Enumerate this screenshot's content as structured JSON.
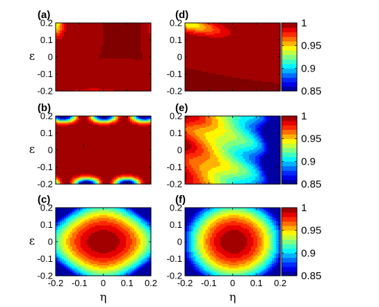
{
  "chart_data": {
    "type": "heatmap",
    "colormap": "jet",
    "levels": [
      0.85,
      0.86,
      0.87,
      0.88,
      0.89,
      0.9,
      0.91,
      0.92,
      0.93,
      0.94,
      0.95,
      0.96,
      0.97,
      0.98,
      0.99,
      1.0
    ],
    "x_ticks": [
      "-0.2",
      "-0.1",
      "0",
      "0.1",
      "0.2"
    ],
    "y_ticks": [
      "0.2",
      "0.1",
      "0",
      "-0.1",
      "-0.2"
    ],
    "xlabel": "η",
    "ylabel": "ε",
    "xlim": [
      -0.2,
      0.2
    ],
    "ylim": [
      -0.2,
      0.2
    ],
    "colorbar": {
      "ticks": [
        "1",
        "0.95",
        "0.9",
        "0.85"
      ],
      "range": [
        0.85,
        1.0
      ]
    },
    "panels": [
      {
        "id": "a",
        "label": "(a)",
        "desc": "fidelity ~1 over most of domain; drops toward 0.94 near bottom-left and top-left corner"
      },
      {
        "id": "b",
        "label": "(b)",
        "desc": "fidelity ~1 in middle band; periodic lobes dropping to 0.85 near eps = ±0.2"
      },
      {
        "id": "c",
        "label": "(c)",
        "desc": "circular contours centred at origin, 1 at centre decreasing to 0.85 at corners"
      },
      {
        "id": "d",
        "label": "(d)",
        "desc": "fidelity ~1 except top-left corner dropping to 0.95"
      },
      {
        "id": "e",
        "label": "(e)",
        "desc": "vertical banding decreasing from ~0.98 on left to 0.87 on right"
      },
      {
        "id": "f",
        "label": "(f)",
        "desc": "broad oval contours centred near origin, 1 at centre to ~0.93 at corners"
      }
    ]
  }
}
